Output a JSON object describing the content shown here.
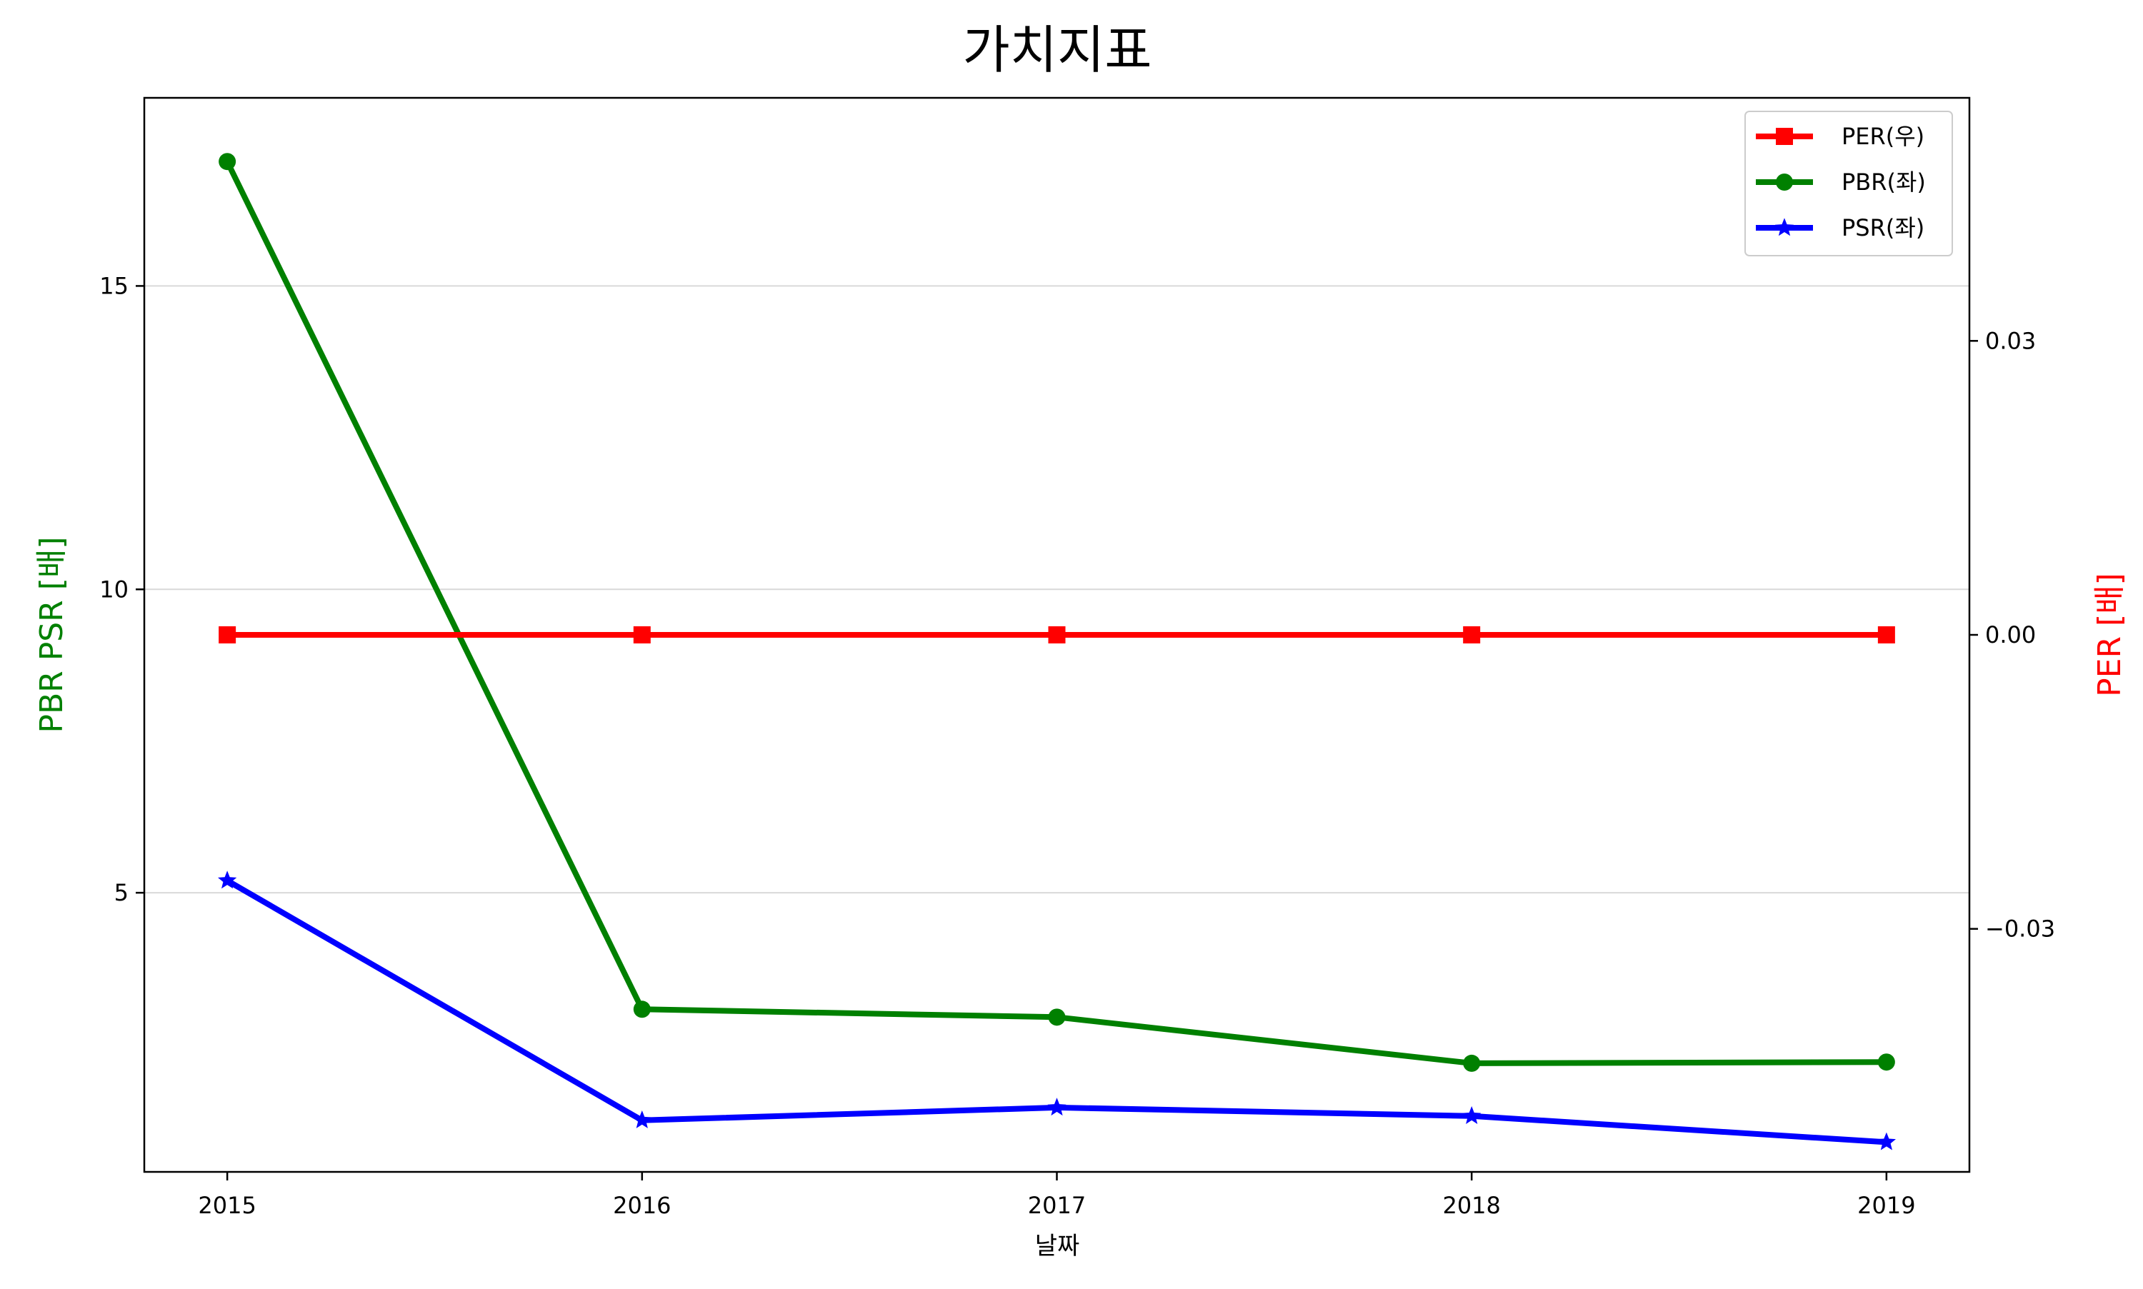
{
  "chart_data": {
    "type": "line",
    "title": "가치지표",
    "xlabel": "날짜",
    "ylabel_left": "PBR PSR [배]",
    "ylabel_right": "PER [배]",
    "ylabel_left_color": "#008000",
    "ylabel_right_color": "#ff0000",
    "categories": [
      "2015",
      "2016",
      "2017",
      "2018",
      "2019"
    ],
    "x_range": [
      2014.8,
      2019.2
    ],
    "y_left": {
      "range": [
        0.4,
        18.1
      ],
      "ticks": [
        5,
        10,
        15
      ],
      "tick_labels": [
        "5",
        "10",
        "15"
      ],
      "grid": true
    },
    "y_right": {
      "range": [
        -0.0548,
        0.0548
      ],
      "ticks": [
        -0.03,
        0.0,
        0.03
      ],
      "tick_labels": [
        "−0.03",
        "0.00",
        "0.03"
      ]
    },
    "series": [
      {
        "name": "PER(우)",
        "axis": "right",
        "color": "#ff0000",
        "marker": "square",
        "values": [
          0.0,
          0.0,
          0.0,
          0.0,
          0.0
        ]
      },
      {
        "name": "PBR(좌)",
        "axis": "left",
        "color": "#008000",
        "marker": "circle",
        "values": [
          17.05,
          3.08,
          2.95,
          2.19,
          2.21
        ]
      },
      {
        "name": "PSR(좌)",
        "axis": "left",
        "color": "#0000ff",
        "marker": "star",
        "values": [
          5.2,
          1.25,
          1.46,
          1.32,
          0.89
        ]
      }
    ],
    "legend_position": "top-right"
  }
}
